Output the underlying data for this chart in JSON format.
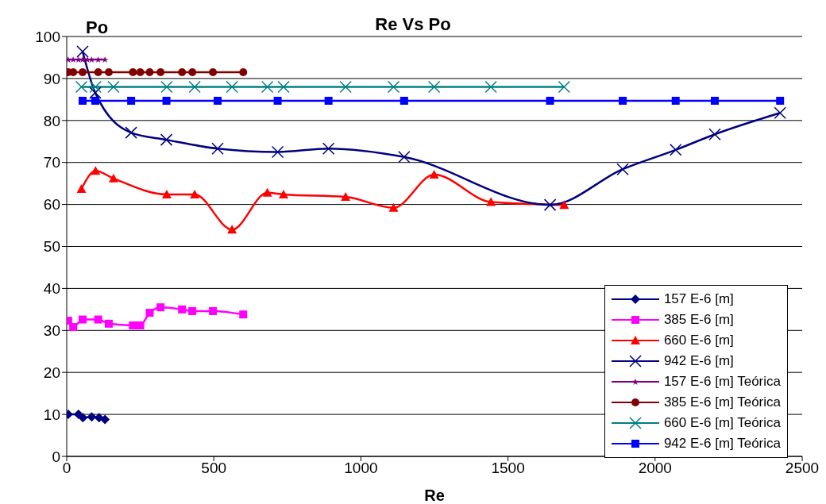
{
  "chart_data": {
    "type": "line",
    "title": "Re Vs Po",
    "ylabel": "Po",
    "xlabel": "Re",
    "xlim": [
      0,
      2500
    ],
    "xticks": [
      0,
      500,
      1000,
      1500,
      2000,
      2500
    ],
    "ylim": [
      0,
      100
    ],
    "yticks": [
      0,
      10,
      20,
      30,
      40,
      50,
      60,
      70,
      80,
      90,
      100
    ],
    "grid": "y",
    "legend": "bottom right",
    "series": [
      {
        "name": "157 E-6 [m]",
        "color": "#000080",
        "marker": "diamond",
        "x": [
          5,
          40,
          55,
          85,
          110,
          130
        ],
        "values": [
          10,
          10,
          9.2,
          9.4,
          9.2,
          8.8
        ]
      },
      {
        "name": "385 E-6 [m]",
        "color": "#ff00ff",
        "marker": "square",
        "x": [
          5,
          22,
          54,
          107,
          143,
          225,
          250,
          282,
          319,
          392,
          427,
          497,
          600
        ],
        "values": [
          32.3,
          30.8,
          32.6,
          32.6,
          31.6,
          31.2,
          31.2,
          34.2,
          35.5,
          35,
          34.6,
          34.6,
          33.8
        ]
      },
      {
        "name": "660 E-6 [m]",
        "color": "#ff0000",
        "marker": "triangle",
        "x": [
          50,
          98,
          159,
          340,
          435,
          562,
          682,
          737,
          948,
          1111,
          1249,
          1442,
          1691
        ],
        "values": [
          63.7,
          68,
          66.2,
          62.4,
          62.4,
          54,
          62.8,
          62.4,
          61.8,
          59.2,
          67.1,
          60.6,
          59.9
        ]
      },
      {
        "name": "942 E-6 [m]",
        "color": "#000080",
        "marker": "cross",
        "x": [
          54,
          97,
          219,
          339,
          513,
          717,
          890,
          1147,
          1643,
          1890,
          2070,
          2203,
          2425
        ],
        "values": [
          96.4,
          86.6,
          77.1,
          75.4,
          73.3,
          72.5,
          73.3,
          71.3,
          59.9,
          68.4,
          73,
          76.7,
          81.8
        ]
      },
      {
        "name": "157 E-6 [m] Teórica",
        "color": "#800080",
        "marker": "star",
        "x": [
          5,
          22,
          40,
          54,
          70,
          85,
          107,
          130
        ],
        "values": [
          94.5,
          94.5,
          94.5,
          94.5,
          94.5,
          94.5,
          94.5,
          94.5
        ]
      },
      {
        "name": "385 E-6 [m] Teórica",
        "color": "#800000",
        "marker": "circle",
        "x": [
          5,
          22,
          54,
          107,
          143,
          225,
          250,
          282,
          319,
          392,
          427,
          497,
          600
        ],
        "values": [
          91.5,
          91.5,
          91.5,
          91.5,
          91.5,
          91.5,
          91.5,
          91.5,
          91.5,
          91.5,
          91.5,
          91.5,
          91.5
        ]
      },
      {
        "name": "660 E-6 [m] Teórica",
        "color": "#008080",
        "marker": "cross",
        "x": [
          50,
          98,
          159,
          340,
          435,
          562,
          682,
          737,
          948,
          1111,
          1249,
          1442,
          1691
        ],
        "values": [
          88,
          88,
          88,
          88,
          88,
          88,
          88,
          88,
          88,
          88,
          88,
          88,
          88
        ]
      },
      {
        "name": "942 E-6 [m] Teórica",
        "color": "#0000ff",
        "marker": "square",
        "x": [
          54,
          97,
          219,
          339,
          513,
          717,
          890,
          1147,
          1643,
          1890,
          2070,
          2203,
          2425
        ],
        "values": [
          84.7,
          84.7,
          84.7,
          84.7,
          84.7,
          84.7,
          84.7,
          84.7,
          84.7,
          84.7,
          84.7,
          84.7,
          84.7
        ]
      }
    ]
  }
}
